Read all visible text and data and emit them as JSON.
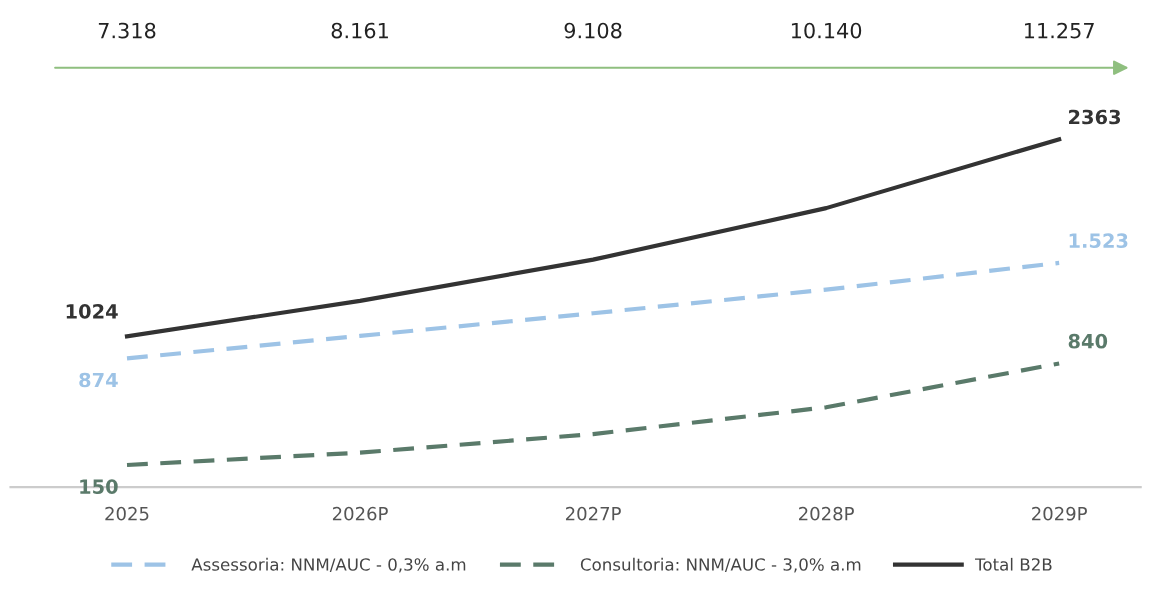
{
  "chart_data": {
    "type": "line",
    "categories": [
      "2025",
      "2026P",
      "2027P",
      "2028P",
      "2029P"
    ],
    "series": [
      {
        "name": "Assessoria: NNM/AUC - 0,3% a.m",
        "color": "#9dc3e6",
        "line_style": "dashed",
        "values": [
          874,
          1027,
          1181,
          1341,
          1523
        ],
        "value_labels": [
          "874",
          null,
          null,
          null,
          "1.523"
        ]
      },
      {
        "name": "Consultoria: NNM/AUC - 3,0% a.m",
        "color": "#5a7a6a",
        "line_style": "dashed",
        "values": [
          150,
          234,
          360,
          542,
          840
        ],
        "value_labels": [
          "150",
          null,
          null,
          null,
          "840"
        ]
      },
      {
        "name": "Total B2B",
        "color": "#333333",
        "line_style": "solid",
        "values": [
          1024,
          1265,
          1545,
          1895,
          2363
        ],
        "value_labels": [
          "1024",
          null,
          null,
          null,
          "2363"
        ]
      }
    ],
    "tick_labels": "x",
    "annotations": [
      "7.318",
      "8.161",
      "9.108",
      "10.140",
      "11.257"
    ],
    "grid": false,
    "legend": "bottom",
    "marker": "none"
  }
}
